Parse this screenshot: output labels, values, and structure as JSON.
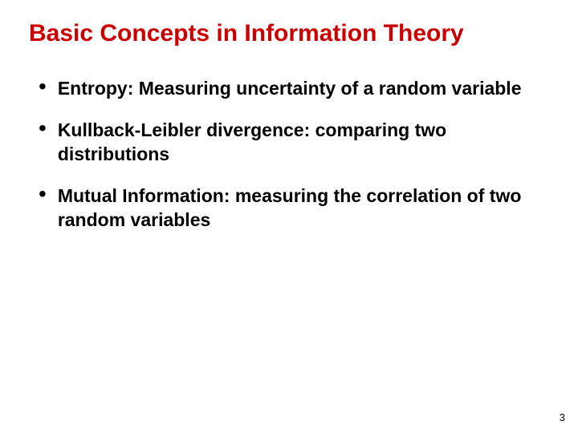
{
  "slide": {
    "title": "Basic Concepts in Information Theory",
    "title_color": "#cc0000",
    "title_fontsize": 30,
    "background_color": "#ffffff",
    "bullets": [
      {
        "text": "Entropy: Measuring uncertainty of a random variable"
      },
      {
        "text": "Kullback-Leibler divergence: comparing two distributions"
      },
      {
        "text": "Mutual Information: measuring the correlation of two random variables"
      }
    ],
    "bullet_color": "#000000",
    "bullet_fontsize": 23,
    "bullet_dot_color": "#000000",
    "page_number": "3",
    "page_number_fontsize": 13
  }
}
